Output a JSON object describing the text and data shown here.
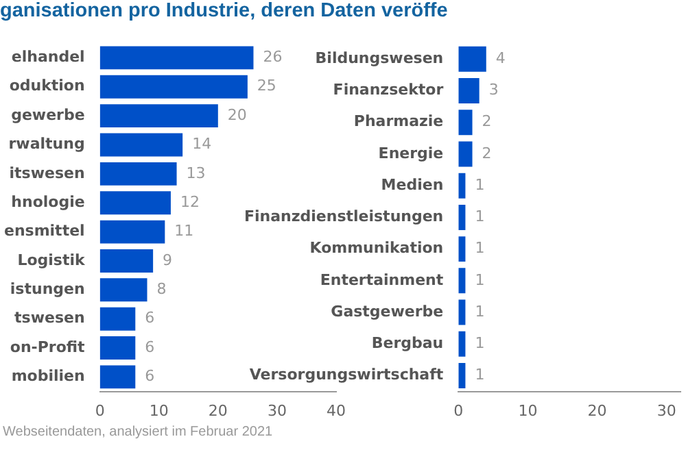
{
  "chart_data": [
    {
      "type": "bar",
      "orientation": "horizontal",
      "title": "ganisationen pro Industrie, deren Daten veröffe",
      "annotations": [
        "Webseitendaten, analysiert im Februar 2021"
      ],
      "categories": [
        "elhandel",
        "oduktion",
        "gewerbe",
        "rwaltung",
        "itswesen",
        "hnologie",
        "ensmittel",
        "Logistik",
        "istungen",
        "tswesen",
        "on-Profit",
        "mobilien"
      ],
      "values": [
        26,
        25,
        20,
        14,
        13,
        12,
        11,
        9,
        8,
        6,
        6,
        6
      ],
      "color": "#0050c8",
      "xlim": [
        0,
        40
      ],
      "xticks": [
        0,
        10,
        20,
        30,
        40
      ],
      "grid": false,
      "legend": false,
      "data_labels": true
    },
    {
      "type": "bar",
      "orientation": "horizontal",
      "categories": [
        "Bildungswesen",
        "Finanzsektor",
        "Pharmazie",
        "Energie",
        "Medien",
        "Finanzdienstleistungen",
        "Kommunikation",
        "Entertainment",
        "Gastgewerbe",
        "Bergbau",
        "Versorgungswirtschaft"
      ],
      "values": [
        4,
        3,
        2,
        2,
        1,
        1,
        1,
        1,
        1,
        1,
        1
      ],
      "color": "#0050c8",
      "xlim": [
        0,
        32
      ],
      "xticks": [
        0,
        10,
        20,
        30
      ],
      "grid": false,
      "legend": false,
      "data_labels": true
    }
  ]
}
